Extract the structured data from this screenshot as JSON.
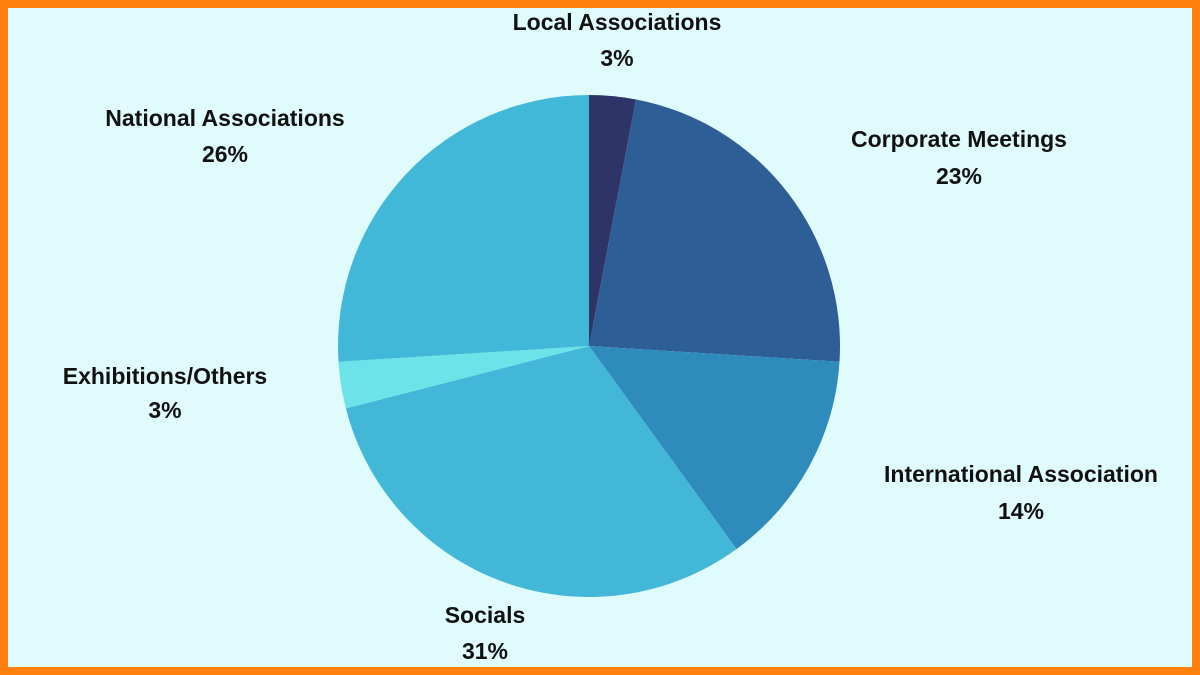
{
  "chart_data": {
    "type": "pie",
    "categories": [
      "Local Associations",
      "Corporate Meetings",
      "International Association",
      "Socials",
      "Exhibitions/Others",
      "National Associations"
    ],
    "values": [
      3,
      23,
      14,
      31,
      3,
      26
    ],
    "value_labels": [
      "3%",
      "23%",
      "14%",
      "31%",
      "3%",
      "26%"
    ],
    "colors": [
      "#2e3468",
      "#2e5e96",
      "#2e8bbb",
      "#42b7d7",
      "#6be3e8",
      "#42b8d8"
    ]
  }
}
